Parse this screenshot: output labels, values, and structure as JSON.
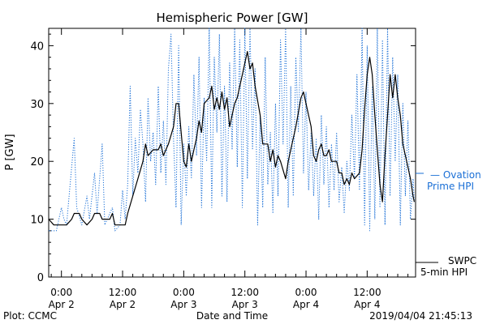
{
  "chart_data": {
    "type": "line",
    "title": "Hemispheric Power [GW]",
    "ylabel": "P [GW]",
    "xlabel": "Date and Time",
    "ylim": [
      0,
      43
    ],
    "xlim_hours_from_apr2_0000": [
      -2.5,
      69.5
    ],
    "yticks": [
      0,
      10,
      20,
      30,
      40
    ],
    "xticks": [
      {
        "t": "2019-04-02 00:00",
        "line1": "0:00",
        "line2": "Apr 2"
      },
      {
        "t": "2019-04-02 12:00",
        "line1": "12:00",
        "line2": "Apr 2"
      },
      {
        "t": "2019-04-03 00:00",
        "line1": "0:00",
        "line2": "Apr 3"
      },
      {
        "t": "2019-04-03 12:00",
        "line1": "12:00",
        "line2": "Apr 3"
      },
      {
        "t": "2019-04-04 00:00",
        "line1": "0:00",
        "line2": "Apr 4"
      },
      {
        "t": "2019-04-04 12:00",
        "line1": "12:00",
        "line2": "Apr 4"
      }
    ],
    "grid": false,
    "series": [
      {
        "name": "SWPC 5-min HPI",
        "color": "#000000",
        "style": "solid",
        "points": [
          [
            "2019-04-01 21:30",
            10
          ],
          [
            "2019-04-01 22:30",
            9
          ],
          [
            "2019-04-02 00:00",
            9
          ],
          [
            "2019-04-02 01:00",
            9
          ],
          [
            "2019-04-02 02:00",
            10
          ],
          [
            "2019-04-02 02:30",
            11
          ],
          [
            "2019-04-02 03:30",
            11
          ],
          [
            "2019-04-02 04:00",
            10
          ],
          [
            "2019-04-02 05:00",
            9
          ],
          [
            "2019-04-02 06:00",
            10
          ],
          [
            "2019-04-02 06:30",
            11
          ],
          [
            "2019-04-02 07:30",
            11
          ],
          [
            "2019-04-02 08:00",
            10
          ],
          [
            "2019-04-02 09:30",
            10
          ],
          [
            "2019-04-02 10:00",
            11
          ],
          [
            "2019-04-02 10:30",
            9
          ],
          [
            "2019-04-02 11:30",
            9
          ],
          [
            "2019-04-02 12:30",
            9
          ],
          [
            "2019-04-02 13:00",
            11
          ],
          [
            "2019-04-02 14:00",
            14
          ],
          [
            "2019-04-02 15:00",
            17
          ],
          [
            "2019-04-02 16:00",
            20
          ],
          [
            "2019-04-02 16:30",
            23
          ],
          [
            "2019-04-02 17:00",
            21
          ],
          [
            "2019-04-02 18:00",
            22
          ],
          [
            "2019-04-02 19:00",
            22
          ],
          [
            "2019-04-02 19:30",
            23
          ],
          [
            "2019-04-02 20:00",
            21
          ],
          [
            "2019-04-02 21:00",
            23
          ],
          [
            "2019-04-02 22:00",
            26
          ],
          [
            "2019-04-02 22:30",
            30
          ],
          [
            "2019-04-02 23:00",
            30
          ],
          [
            "2019-04-02 23:30",
            25
          ],
          [
            "2019-04-03 00:00",
            20
          ],
          [
            "2019-04-03 00:30",
            19
          ],
          [
            "2019-04-03 01:00",
            23
          ],
          [
            "2019-04-03 01:30",
            20
          ],
          [
            "2019-04-03 02:00",
            22
          ],
          [
            "2019-04-03 02:30",
            24
          ],
          [
            "2019-04-03 03:00",
            27
          ],
          [
            "2019-04-03 03:30",
            25
          ],
          [
            "2019-04-03 04:00",
            30
          ],
          [
            "2019-04-03 05:00",
            31
          ],
          [
            "2019-04-03 05:30",
            33
          ],
          [
            "2019-04-03 06:00",
            29
          ],
          [
            "2019-04-03 06:30",
            31
          ],
          [
            "2019-04-03 07:00",
            29
          ],
          [
            "2019-04-03 07:30",
            32
          ],
          [
            "2019-04-03 08:00",
            29
          ],
          [
            "2019-04-03 08:30",
            31
          ],
          [
            "2019-04-03 09:00",
            26
          ],
          [
            "2019-04-03 09:30",
            28
          ],
          [
            "2019-04-03 10:00",
            30
          ],
          [
            "2019-04-03 10:30",
            31
          ],
          [
            "2019-04-03 11:00",
            33
          ],
          [
            "2019-04-03 11:30",
            35
          ],
          [
            "2019-04-03 12:00",
            37
          ],
          [
            "2019-04-03 12:30",
            39
          ],
          [
            "2019-04-03 13:00",
            36
          ],
          [
            "2019-04-03 13:30",
            37
          ],
          [
            "2019-04-03 14:00",
            33
          ],
          [
            "2019-04-03 15:00",
            28
          ],
          [
            "2019-04-03 15:30",
            23
          ],
          [
            "2019-04-03 16:30",
            23
          ],
          [
            "2019-04-03 17:00",
            20
          ],
          [
            "2019-04-03 17:30",
            22
          ],
          [
            "2019-04-03 18:00",
            19
          ],
          [
            "2019-04-03 18:30",
            21
          ],
          [
            "2019-04-03 19:00",
            20
          ],
          [
            "2019-04-03 20:00",
            17
          ],
          [
            "2019-04-03 20:30",
            20
          ],
          [
            "2019-04-03 21:00",
            22
          ],
          [
            "2019-04-03 22:00",
            26
          ],
          [
            "2019-04-03 23:00",
            31
          ],
          [
            "2019-04-03 23:30",
            32
          ],
          [
            "2019-04-04 00:00",
            30
          ],
          [
            "2019-04-04 01:00",
            26
          ],
          [
            "2019-04-04 01:30",
            21
          ],
          [
            "2019-04-04 02:00",
            20
          ],
          [
            "2019-04-04 02:30",
            22
          ],
          [
            "2019-04-04 03:00",
            23
          ],
          [
            "2019-04-04 03:30",
            21
          ],
          [
            "2019-04-04 04:00",
            21
          ],
          [
            "2019-04-04 04:30",
            22
          ],
          [
            "2019-04-04 05:00",
            20
          ],
          [
            "2019-04-04 06:00",
            20
          ],
          [
            "2019-04-04 06:30",
            18
          ],
          [
            "2019-04-04 07:00",
            18
          ],
          [
            "2019-04-04 07:30",
            16
          ],
          [
            "2019-04-04 08:00",
            17
          ],
          [
            "2019-04-04 08:30",
            16
          ],
          [
            "2019-04-04 09:00",
            18
          ],
          [
            "2019-04-04 09:30",
            17
          ],
          [
            "2019-04-04 10:30",
            18
          ],
          [
            "2019-04-04 11:00",
            22
          ],
          [
            "2019-04-04 11:30",
            29
          ],
          [
            "2019-04-04 12:00",
            35
          ],
          [
            "2019-04-04 12:30",
            38
          ],
          [
            "2019-04-04 13:00",
            35
          ],
          [
            "2019-04-04 13:30",
            28
          ],
          [
            "2019-04-04 14:00",
            22
          ],
          [
            "2019-04-04 14:30",
            16
          ],
          [
            "2019-04-04 15:00",
            13
          ],
          [
            "2019-04-04 15:30",
            21
          ],
          [
            "2019-04-04 16:00",
            28
          ],
          [
            "2019-04-04 16:30",
            35
          ],
          [
            "2019-04-04 17:00",
            31
          ],
          [
            "2019-04-04 17:30",
            35
          ],
          [
            "2019-04-04 18:00",
            31
          ],
          [
            "2019-04-04 18:30",
            28
          ],
          [
            "2019-04-04 19:00",
            23
          ],
          [
            "2019-04-04 20:00",
            19
          ],
          [
            "2019-04-04 20:30",
            17
          ],
          [
            "2019-04-04 21:00",
            14
          ],
          [
            "2019-04-04 21:15",
            13
          ]
        ]
      },
      {
        "name": "Ovation Prime HPI",
        "color": "#1a6fd6",
        "style": "dotted",
        "points": [
          [
            "2019-04-01 21:30",
            8
          ],
          [
            "2019-04-01 23:00",
            8
          ],
          [
            "2019-04-02 00:00",
            12
          ],
          [
            "2019-04-02 00:30",
            10
          ],
          [
            "2019-04-02 01:00",
            9
          ],
          [
            "2019-04-02 02:30",
            24
          ],
          [
            "2019-04-02 03:00",
            12
          ],
          [
            "2019-04-02 04:00",
            9
          ],
          [
            "2019-04-02 05:00",
            14
          ],
          [
            "2019-04-02 05:30",
            10
          ],
          [
            "2019-04-02 06:30",
            18
          ],
          [
            "2019-04-02 07:00",
            11
          ],
          [
            "2019-04-02 08:00",
            23
          ],
          [
            "2019-04-02 08:30",
            9
          ],
          [
            "2019-04-02 09:00",
            10
          ],
          [
            "2019-04-02 10:00",
            12
          ],
          [
            "2019-04-02 10:30",
            8
          ],
          [
            "2019-04-02 11:30",
            9
          ],
          [
            "2019-04-02 12:00",
            15
          ],
          [
            "2019-04-02 12:30",
            10
          ],
          [
            "2019-04-02 13:00",
            16
          ],
          [
            "2019-04-02 13:30",
            33
          ],
          [
            "2019-04-02 14:00",
            14
          ],
          [
            "2019-04-02 14:30",
            24
          ],
          [
            "2019-04-02 15:00",
            18
          ],
          [
            "2019-04-02 15:30",
            29
          ],
          [
            "2019-04-02 16:00",
            23
          ],
          [
            "2019-04-02 16:30",
            13
          ],
          [
            "2019-04-02 17:00",
            31
          ],
          [
            "2019-04-02 17:30",
            20
          ],
          [
            "2019-04-02 18:00",
            25
          ],
          [
            "2019-04-02 18:30",
            16
          ],
          [
            "2019-04-02 19:00",
            33
          ],
          [
            "2019-04-02 19:30",
            18
          ],
          [
            "2019-04-02 20:00",
            27
          ],
          [
            "2019-04-02 20:30",
            16
          ],
          [
            "2019-04-02 21:00",
            36
          ],
          [
            "2019-04-02 21:30",
            42
          ],
          [
            "2019-04-02 22:00",
            24
          ],
          [
            "2019-04-02 22:30",
            12
          ],
          [
            "2019-04-02 23:00",
            40
          ],
          [
            "2019-04-02 23:30",
            9
          ],
          [
            "2019-04-03 00:00",
            23
          ],
          [
            "2019-04-03 00:30",
            14
          ],
          [
            "2019-04-03 01:00",
            26
          ],
          [
            "2019-04-03 01:30",
            17
          ],
          [
            "2019-04-03 02:00",
            35
          ],
          [
            "2019-04-03 02:30",
            21
          ],
          [
            "2019-04-03 03:00",
            38
          ],
          [
            "2019-04-03 03:30",
            12
          ],
          [
            "2019-04-03 04:00",
            31
          ],
          [
            "2019-04-03 04:30",
            20
          ],
          [
            "2019-04-03 05:00",
            43
          ],
          [
            "2019-04-03 05:30",
            12
          ],
          [
            "2019-04-03 06:00",
            38
          ],
          [
            "2019-04-03 06:30",
            25
          ],
          [
            "2019-04-03 07:00",
            42
          ],
          [
            "2019-04-03 07:30",
            14
          ],
          [
            "2019-04-03 08:00",
            33
          ],
          [
            "2019-04-03 08:30",
            13
          ],
          [
            "2019-04-03 09:00",
            37
          ],
          [
            "2019-04-03 09:30",
            22
          ],
          [
            "2019-04-03 10:00",
            43
          ],
          [
            "2019-04-03 10:30",
            19
          ],
          [
            "2019-04-03 11:00",
            41
          ],
          [
            "2019-04-03 11:30",
            12
          ],
          [
            "2019-04-03 12:00",
            43
          ],
          [
            "2019-04-03 12:30",
            17
          ],
          [
            "2019-04-03 13:00",
            43
          ],
          [
            "2019-04-03 13:30",
            22
          ],
          [
            "2019-04-03 14:00",
            36
          ],
          [
            "2019-04-03 14:30",
            9
          ],
          [
            "2019-04-03 15:00",
            28
          ],
          [
            "2019-04-03 15:30",
            12
          ],
          [
            "2019-04-03 16:00",
            38
          ],
          [
            "2019-04-03 16:30",
            16
          ],
          [
            "2019-04-03 17:00",
            25
          ],
          [
            "2019-04-03 17:30",
            11
          ],
          [
            "2019-04-03 18:00",
            30
          ],
          [
            "2019-04-03 18:30",
            14
          ],
          [
            "2019-04-03 19:00",
            41
          ],
          [
            "2019-04-03 19:30",
            23
          ],
          [
            "2019-04-03 20:00",
            43
          ],
          [
            "2019-04-03 20:30",
            12
          ],
          [
            "2019-04-03 21:00",
            33
          ],
          [
            "2019-04-03 21:30",
            14
          ],
          [
            "2019-04-03 22:00",
            38
          ],
          [
            "2019-04-03 22:30",
            25
          ],
          [
            "2019-04-03 23:00",
            43
          ],
          [
            "2019-04-03 23:30",
            18
          ],
          [
            "2019-04-04 00:00",
            32
          ],
          [
            "2019-04-04 00:30",
            15
          ],
          [
            "2019-04-04 01:00",
            25
          ],
          [
            "2019-04-04 01:30",
            14
          ],
          [
            "2019-04-04 02:00",
            24
          ],
          [
            "2019-04-04 02:30",
            10
          ],
          [
            "2019-04-04 03:00",
            28
          ],
          [
            "2019-04-04 03:30",
            16
          ],
          [
            "2019-04-04 04:00",
            26
          ],
          [
            "2019-04-04 04:30",
            12
          ],
          [
            "2019-04-04 05:00",
            23
          ],
          [
            "2019-04-04 05:30",
            15
          ],
          [
            "2019-04-04 06:00",
            25
          ],
          [
            "2019-04-04 06:30",
            13
          ],
          [
            "2019-04-04 07:00",
            19
          ],
          [
            "2019-04-04 07:30",
            11
          ],
          [
            "2019-04-04 08:00",
            20
          ],
          [
            "2019-04-04 08:30",
            15
          ],
          [
            "2019-04-04 09:00",
            28
          ],
          [
            "2019-04-04 09:30",
            17
          ],
          [
            "2019-04-04 10:00",
            35
          ],
          [
            "2019-04-04 10:30",
            15
          ],
          [
            "2019-04-04 11:00",
            43
          ],
          [
            "2019-04-04 11:30",
            9
          ],
          [
            "2019-04-04 12:00",
            40
          ],
          [
            "2019-04-04 12:30",
            8
          ],
          [
            "2019-04-04 13:00",
            33
          ],
          [
            "2019-04-04 13:30",
            10
          ],
          [
            "2019-04-04 14:00",
            43
          ],
          [
            "2019-04-04 14:30",
            12
          ],
          [
            "2019-04-04 15:00",
            41
          ],
          [
            "2019-04-04 15:30",
            9
          ],
          [
            "2019-04-04 16:00",
            43
          ],
          [
            "2019-04-04 16:30",
            14
          ],
          [
            "2019-04-04 17:00",
            38
          ],
          [
            "2019-04-04 17:30",
            20
          ],
          [
            "2019-04-04 18:00",
            35
          ],
          [
            "2019-04-04 18:30",
            9
          ],
          [
            "2019-04-04 19:00",
            30
          ],
          [
            "2019-04-04 19:30",
            14
          ],
          [
            "2019-04-04 20:00",
            27
          ],
          [
            "2019-04-04 20:30",
            10
          ],
          [
            "2019-04-04 21:00",
            17
          ],
          [
            "2019-04-04 21:15",
            13
          ]
        ]
      }
    ]
  },
  "legend": {
    "ovation_line1": "— Ovation",
    "ovation_line2": "Prime HPI",
    "swpc_line1": "SWPC",
    "swpc_line2": "5-min HPI"
  },
  "footer": {
    "credit": "Plot: CCMC",
    "timestamp": "2019/04/04 21:45:13"
  },
  "colors": {
    "observed": "#000000",
    "model": "#1a6fd6"
  }
}
